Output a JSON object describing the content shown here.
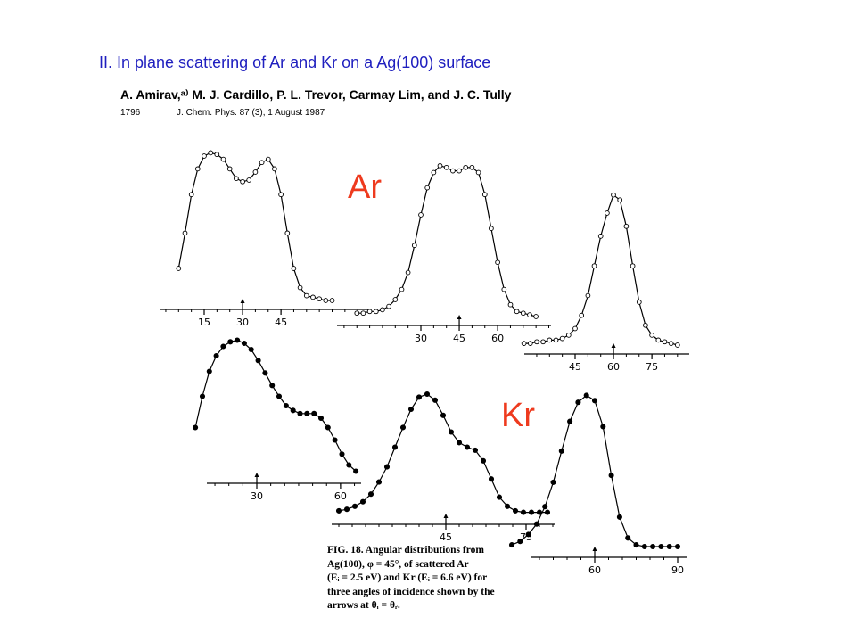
{
  "slide": {
    "title": "II. In plane scattering of Ar and Kr on a Ag(100) surface"
  },
  "reference": {
    "authors": "A.  Amirav,ᵃ⁾ M. J.  Cardillo, P. L.  Trevor, Carmay  Lim, and J. C.  Tully",
    "page": "1796",
    "journal": "J. Chem. Phys. 87 (3), 1 August 1987"
  },
  "labels": {
    "ar": "Ar",
    "kr": "Kr"
  },
  "caption": "FIG. 18. Angular distributions from\nAg(100),  φ = 45°,  of  scattered  Ar\n(Eᵢ = 2.5 eV) and Kr (Eᵢ = 6.6 eV) for\nthree angles of incidence shown by the\narrows at θᵢ = θᵣ.",
  "chart_data": [
    {
      "type": "scatter",
      "series": [
        {
          "name": "Ar",
          "x": [
            5,
            7.5,
            10,
            12.5,
            15,
            17.5,
            20,
            22.5,
            25,
            27.5,
            30,
            32.5,
            35,
            37.5,
            40,
            42.5,
            45,
            47.5,
            50,
            52.5,
            55,
            57.5,
            60,
            62.5,
            65
          ],
          "y": [
            0.2,
            0.42,
            0.66,
            0.82,
            0.9,
            0.92,
            0.91,
            0.88,
            0.82,
            0.76,
            0.74,
            0.75,
            0.8,
            0.86,
            0.88,
            0.82,
            0.66,
            0.42,
            0.2,
            0.08,
            0.03,
            0.02,
            0.01,
            0.0,
            0.0
          ]
        }
      ],
      "xticks": [
        15,
        30,
        45
      ],
      "arrow_at": 30
    },
    {
      "type": "scatter",
      "series": [
        {
          "name": "Ar",
          "x": [
            5,
            7.5,
            10,
            12.5,
            15,
            17.5,
            20,
            22.5,
            25,
            27.5,
            30,
            32.5,
            35,
            37.5,
            40,
            42.5,
            45,
            47.5,
            50,
            52.5,
            55,
            57.5,
            60,
            62.5,
            65,
            67.5,
            70,
            72.5,
            75
          ],
          "y": [
            0.02,
            0.02,
            0.03,
            0.03,
            0.04,
            0.06,
            0.1,
            0.16,
            0.26,
            0.42,
            0.6,
            0.76,
            0.85,
            0.89,
            0.88,
            0.86,
            0.86,
            0.88,
            0.88,
            0.85,
            0.72,
            0.52,
            0.32,
            0.16,
            0.07,
            0.03,
            0.02,
            0.01,
            0.0
          ]
        }
      ],
      "xticks": [
        30,
        45,
        60
      ],
      "arrow_at": 45
    },
    {
      "type": "scatter",
      "series": [
        {
          "name": "Ar",
          "x": [
            25,
            27.5,
            30,
            32.5,
            35,
            37.5,
            40,
            42.5,
            45,
            47.5,
            50,
            52.5,
            55,
            57.5,
            60,
            62.5,
            65,
            67.5,
            70,
            72.5,
            75,
            77.5,
            80,
            82.5,
            85
          ],
          "y": [
            0.01,
            0.01,
            0.02,
            0.02,
            0.03,
            0.03,
            0.04,
            0.06,
            0.1,
            0.18,
            0.3,
            0.48,
            0.66,
            0.8,
            0.91,
            0.88,
            0.72,
            0.48,
            0.26,
            0.12,
            0.06,
            0.03,
            0.02,
            0.01,
            0.0
          ]
        }
      ],
      "xticks": [
        45,
        60,
        75
      ],
      "arrow_at": 60
    },
    {
      "type": "scatter",
      "series": [
        {
          "name": "Kr",
          "x": [
            8,
            10.5,
            13,
            15.5,
            18,
            20.5,
            23,
            25.5,
            28,
            30.5,
            33,
            35.5,
            38,
            40.5,
            43,
            45.5,
            48,
            50.5,
            53,
            55.5,
            58,
            60.5,
            63,
            65.5
          ],
          "y": [
            0.3,
            0.5,
            0.66,
            0.76,
            0.82,
            0.85,
            0.86,
            0.84,
            0.8,
            0.73,
            0.65,
            0.57,
            0.5,
            0.44,
            0.41,
            0.39,
            0.39,
            0.39,
            0.36,
            0.3,
            0.22,
            0.13,
            0.06,
            0.02
          ]
        }
      ],
      "xticks": [
        30,
        60
      ],
      "arrow_at": 30
    },
    {
      "type": "scatter",
      "series": [
        {
          "name": "Kr",
          "x": [
            5,
            8,
            11,
            14,
            17,
            20,
            23,
            26,
            29,
            32,
            35,
            38,
            41,
            44,
            47,
            50,
            53,
            56,
            59,
            62,
            65,
            68,
            71,
            74,
            77,
            80,
            83
          ],
          "y": [
            0.03,
            0.04,
            0.06,
            0.09,
            0.14,
            0.22,
            0.32,
            0.45,
            0.58,
            0.7,
            0.78,
            0.8,
            0.76,
            0.66,
            0.55,
            0.48,
            0.45,
            0.43,
            0.36,
            0.24,
            0.12,
            0.06,
            0.03,
            0.02,
            0.02,
            0.02,
            0.02
          ]
        }
      ],
      "xticks": [
        45,
        75
      ],
      "arrow_at": 45
    },
    {
      "type": "scatter",
      "series": [
        {
          "name": "Kr",
          "x": [
            30,
            33,
            36,
            39,
            42,
            45,
            48,
            51,
            54,
            57,
            60,
            63,
            66,
            69,
            72,
            75,
            78,
            81,
            84,
            87,
            90
          ],
          "y": [
            0.02,
            0.04,
            0.08,
            0.14,
            0.24,
            0.38,
            0.56,
            0.73,
            0.84,
            0.88,
            0.85,
            0.7,
            0.42,
            0.18,
            0.06,
            0.02,
            0.01,
            0.01,
            0.01,
            0.01,
            0.01
          ]
        }
      ],
      "xticks": [
        60,
        90
      ],
      "arrow_at": 60
    }
  ]
}
